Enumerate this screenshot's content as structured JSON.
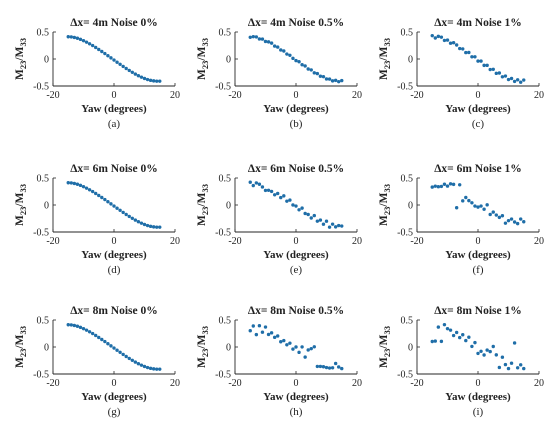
{
  "colors": {
    "marker": "#1f6ea8",
    "axis": "#262626",
    "text": "#222222"
  },
  "chart_data": [
    {
      "type": "scatter",
      "caption": "(a)",
      "title": "Δx= 4m Noise 0%",
      "xlabel": "Yaw (degrees)",
      "ylabel": "M23/M33",
      "xlim": [
        -20,
        20
      ],
      "ylim": [
        -0.5,
        0.5
      ],
      "xticks": [
        "-20",
        "0",
        "20"
      ],
      "yticks": [
        "-0.5",
        "0",
        "0.5"
      ],
      "x": [
        -15,
        -14,
        -13,
        -12,
        -11,
        -10,
        -9,
        -8,
        -7,
        -6,
        -5,
        -4,
        -3,
        -2,
        -1,
        0,
        1,
        2,
        3,
        4,
        5,
        6,
        7,
        8,
        9,
        10,
        11,
        12,
        13,
        14,
        15
      ],
      "y": [
        0.412,
        0.409,
        0.399,
        0.384,
        0.364,
        0.34,
        0.312,
        0.282,
        0.249,
        0.214,
        0.177,
        0.139,
        0.101,
        0.061,
        0.021,
        -0.019,
        -0.059,
        -0.098,
        -0.137,
        -0.175,
        -0.211,
        -0.246,
        -0.279,
        -0.309,
        -0.336,
        -0.36,
        -0.38,
        -0.395,
        -0.405,
        -0.41,
        -0.41
      ]
    },
    {
      "type": "scatter",
      "caption": "(b)",
      "title": "Δx= 4m Noise 0.5%",
      "xlabel": "Yaw (degrees)",
      "ylabel": "M23/M33",
      "xlim": [
        -20,
        20
      ],
      "ylim": [
        -0.5,
        0.5
      ],
      "xticks": [
        "-20",
        "0",
        "20"
      ],
      "yticks": [
        "-0.5",
        "0",
        "0.5"
      ],
      "x": [
        -15,
        -14,
        -13,
        -12,
        -11,
        -10,
        -9,
        -8,
        -7,
        -6,
        -5,
        -4,
        -3,
        -2,
        -1,
        0,
        1,
        2,
        3,
        4,
        5,
        6,
        7,
        8,
        9,
        10,
        11,
        12,
        13,
        14,
        15
      ],
      "y": [
        0.402,
        0.414,
        0.409,
        0.371,
        0.369,
        0.325,
        0.317,
        0.294,
        0.239,
        0.221,
        0.167,
        0.148,
        0.092,
        0.069,
        0.012,
        -0.029,
        -0.05,
        -0.106,
        -0.129,
        -0.185,
        -0.202,
        -0.256,
        -0.27,
        -0.319,
        -0.327,
        -0.37,
        -0.372,
        -0.405,
        -0.396,
        -0.42,
        -0.4
      ]
    },
    {
      "type": "scatter",
      "caption": "(c)",
      "title": "Δx= 4m Noise 1%",
      "xlabel": "Yaw (degrees)",
      "ylabel": "M23/M33",
      "xlim": [
        -20,
        20
      ],
      "ylim": [
        -0.5,
        0.5
      ],
      "xticks": [
        "-20",
        "0",
        "20"
      ],
      "yticks": [
        "-0.5",
        "0",
        "0.5"
      ],
      "x": [
        -15,
        -14,
        -13,
        -12,
        -11,
        -10,
        -9,
        -8,
        -7,
        -6,
        -5,
        -4,
        -3,
        -2,
        -1,
        0,
        1,
        2,
        3,
        4,
        5,
        6,
        7,
        8,
        9,
        10,
        11,
        12,
        13,
        14,
        15
      ],
      "y": [
        0.432,
        0.389,
        0.419,
        0.404,
        0.344,
        0.35,
        0.292,
        0.302,
        0.259,
        0.194,
        0.187,
        0.119,
        0.121,
        0.041,
        0.041,
        -0.039,
        -0.039,
        -0.118,
        -0.117,
        -0.195,
        -0.191,
        -0.266,
        -0.259,
        -0.329,
        -0.316,
        -0.38,
        -0.36,
        -0.415,
        -0.385,
        -0.43,
        -0.39
      ]
    },
    {
      "type": "scatter",
      "caption": "(d)",
      "title": "Δx= 6m Noise 0%",
      "xlabel": "Yaw (degrees)",
      "ylabel": "M23/M33",
      "xlim": [
        -20,
        20
      ],
      "ylim": [
        -0.5,
        0.5
      ],
      "xticks": [
        "-20",
        "0",
        "20"
      ],
      "yticks": [
        "-0.5",
        "0",
        "0.5"
      ],
      "x": [
        -15,
        -14,
        -13,
        -12,
        -11,
        -10,
        -9,
        -8,
        -7,
        -6,
        -5,
        -4,
        -3,
        -2,
        -1,
        0,
        1,
        2,
        3,
        4,
        5,
        6,
        7,
        8,
        9,
        10,
        11,
        12,
        13,
        14,
        15
      ],
      "y": [
        0.412,
        0.409,
        0.399,
        0.384,
        0.364,
        0.34,
        0.312,
        0.282,
        0.249,
        0.214,
        0.177,
        0.139,
        0.101,
        0.061,
        0.021,
        -0.019,
        -0.059,
        -0.098,
        -0.137,
        -0.175,
        -0.211,
        -0.246,
        -0.279,
        -0.309,
        -0.336,
        -0.36,
        -0.38,
        -0.395,
        -0.405,
        -0.41,
        -0.41
      ]
    },
    {
      "type": "scatter",
      "caption": "(e)",
      "title": "Δx= 6m Noise 0.5%",
      "xlabel": "Yaw (degrees)",
      "ylabel": "M23/M33",
      "xlim": [
        -20,
        20
      ],
      "ylim": [
        -0.5,
        0.5
      ],
      "xticks": [
        "-20",
        "0",
        "20"
      ],
      "yticks": [
        "-0.5",
        "0",
        "0.5"
      ],
      "x": [
        -15,
        -14,
        -13,
        -12,
        -11,
        -10,
        -9,
        -8,
        -7,
        -6,
        -5,
        -4,
        -3,
        -2,
        -1,
        0,
        1,
        2,
        3,
        4,
        5,
        6,
        7,
        8,
        9,
        10,
        11,
        12,
        13,
        14,
        15
      ],
      "y": [
        0.422,
        0.359,
        0.409,
        0.384,
        0.334,
        0.27,
        0.272,
        0.252,
        0.189,
        0.214,
        0.137,
        0.169,
        0.071,
        0.091,
        0.001,
        -0.019,
        -0.089,
        -0.058,
        -0.157,
        -0.175,
        -0.241,
        -0.196,
        -0.299,
        -0.279,
        -0.356,
        -0.3,
        -0.41,
        -0.355,
        -0.405,
        -0.38,
        -0.39
      ]
    },
    {
      "type": "scatter",
      "caption": "(f)",
      "title": "Δx= 6m Noise 1%",
      "xlabel": "Yaw (degrees)",
      "ylabel": "M23/M33",
      "xlim": [
        -20,
        20
      ],
      "ylim": [
        -0.5,
        0.5
      ],
      "xticks": [
        "-20",
        "0",
        "20"
      ],
      "yticks": [
        "-0.5",
        "0",
        "0.5"
      ],
      "x": [
        -15,
        -14,
        -13,
        -12,
        -11,
        -10,
        -9,
        -8,
        -7,
        -6,
        -5,
        -4,
        -3,
        -2,
        -1,
        0,
        1,
        2,
        3,
        4,
        5,
        6,
        7,
        8,
        9,
        10,
        11,
        12,
        13,
        14,
        15
      ],
      "y": [
        0.332,
        0.349,
        0.339,
        0.344,
        0.384,
        0.35,
        0.392,
        0.382,
        -0.051,
        0.374,
        0.077,
        0.139,
        0.081,
        0.041,
        -0.019,
        -0.039,
        -0.019,
        -0.078,
        0.003,
        -0.175,
        -0.131,
        -0.186,
        -0.229,
        -0.199,
        -0.336,
        -0.29,
        -0.26,
        -0.315,
        -0.345,
        -0.26,
        -0.31
      ]
    },
    {
      "type": "scatter",
      "caption": "(g)",
      "title": "Δx= 8m Noise 0%",
      "xlabel": "Yaw (degrees)",
      "ylabel": "M23/M33",
      "xlim": [
        -20,
        20
      ],
      "ylim": [
        -0.5,
        0.5
      ],
      "xticks": [
        "-20",
        "0",
        "20"
      ],
      "yticks": [
        "-0.5",
        "0",
        "0.5"
      ],
      "x": [
        -15,
        -14,
        -13,
        -12,
        -11,
        -10,
        -9,
        -8,
        -7,
        -6,
        -5,
        -4,
        -3,
        -2,
        -1,
        0,
        1,
        2,
        3,
        4,
        5,
        6,
        7,
        8,
        9,
        10,
        11,
        12,
        13,
        14,
        15
      ],
      "y": [
        0.412,
        0.409,
        0.399,
        0.384,
        0.364,
        0.34,
        0.312,
        0.282,
        0.249,
        0.214,
        0.177,
        0.139,
        0.101,
        0.061,
        0.021,
        -0.019,
        -0.059,
        -0.098,
        -0.137,
        -0.175,
        -0.211,
        -0.246,
        -0.279,
        -0.309,
        -0.336,
        -0.36,
        -0.38,
        -0.395,
        -0.405,
        -0.41,
        -0.41
      ]
    },
    {
      "type": "scatter",
      "caption": "(h)",
      "title": "Δx= 8m Noise 0.5%",
      "xlabel": "Yaw (degrees)",
      "ylabel": "M23/M33",
      "xlim": [
        -20,
        20
      ],
      "ylim": [
        -0.5,
        0.5
      ],
      "xticks": [
        "-20",
        "0",
        "20"
      ],
      "yticks": [
        "-0.5",
        "0",
        "0.5"
      ],
      "x": [
        -15,
        -14,
        -13,
        -12,
        -11,
        -10,
        -9,
        -8,
        -7,
        -6,
        -5,
        -4,
        -3,
        -2,
        -1,
        0,
        1,
        2,
        3,
        4,
        5,
        6,
        7,
        8,
        9,
        10,
        11,
        12,
        13,
        14,
        15
      ],
      "y": [
        0.302,
        0.389,
        0.229,
        0.394,
        0.274,
        0.37,
        0.232,
        0.262,
        0.179,
        0.204,
        0.097,
        0.119,
        0.041,
        0.071,
        -0.039,
        0.001,
        -0.099,
        0.002,
        -0.187,
        -0.055,
        -0.031,
        0.004,
        -0.359,
        -0.359,
        -0.366,
        -0.38,
        -0.39,
        -0.385,
        -0.305,
        -0.37,
        -0.4
      ]
    },
    {
      "type": "scatter",
      "caption": "(i)",
      "title": "Δx= 8m Noise 1%",
      "xlabel": "Yaw (degrees)",
      "ylabel": "M23/M33",
      "xlim": [
        -20,
        20
      ],
      "ylim": [
        -0.5,
        0.5
      ],
      "xticks": [
        "-20",
        "0",
        "20"
      ],
      "yticks": [
        "-0.5",
        "0",
        "0.5"
      ],
      "x": [
        -15,
        -14,
        -13,
        -12,
        -11,
        -10,
        -9,
        -8,
        -7,
        -6,
        -5,
        -4,
        -3,
        -2,
        -1,
        0,
        1,
        2,
        3,
        4,
        5,
        6,
        7,
        8,
        9,
        10,
        11,
        12,
        13,
        14,
        15
      ],
      "y": [
        0.102,
        0.109,
        0.369,
        0.104,
        0.414,
        0.34,
        0.312,
        0.212,
        0.269,
        0.174,
        0.227,
        0.119,
        0.181,
        0.011,
        0.081,
        -0.119,
        -0.079,
        -0.148,
        -0.057,
        -0.085,
        0.009,
        -0.146,
        -0.379,
        -0.189,
        -0.326,
        -0.4,
        -0.3,
        0.075,
        -0.385,
        -0.33,
        -0.4
      ]
    }
  ]
}
